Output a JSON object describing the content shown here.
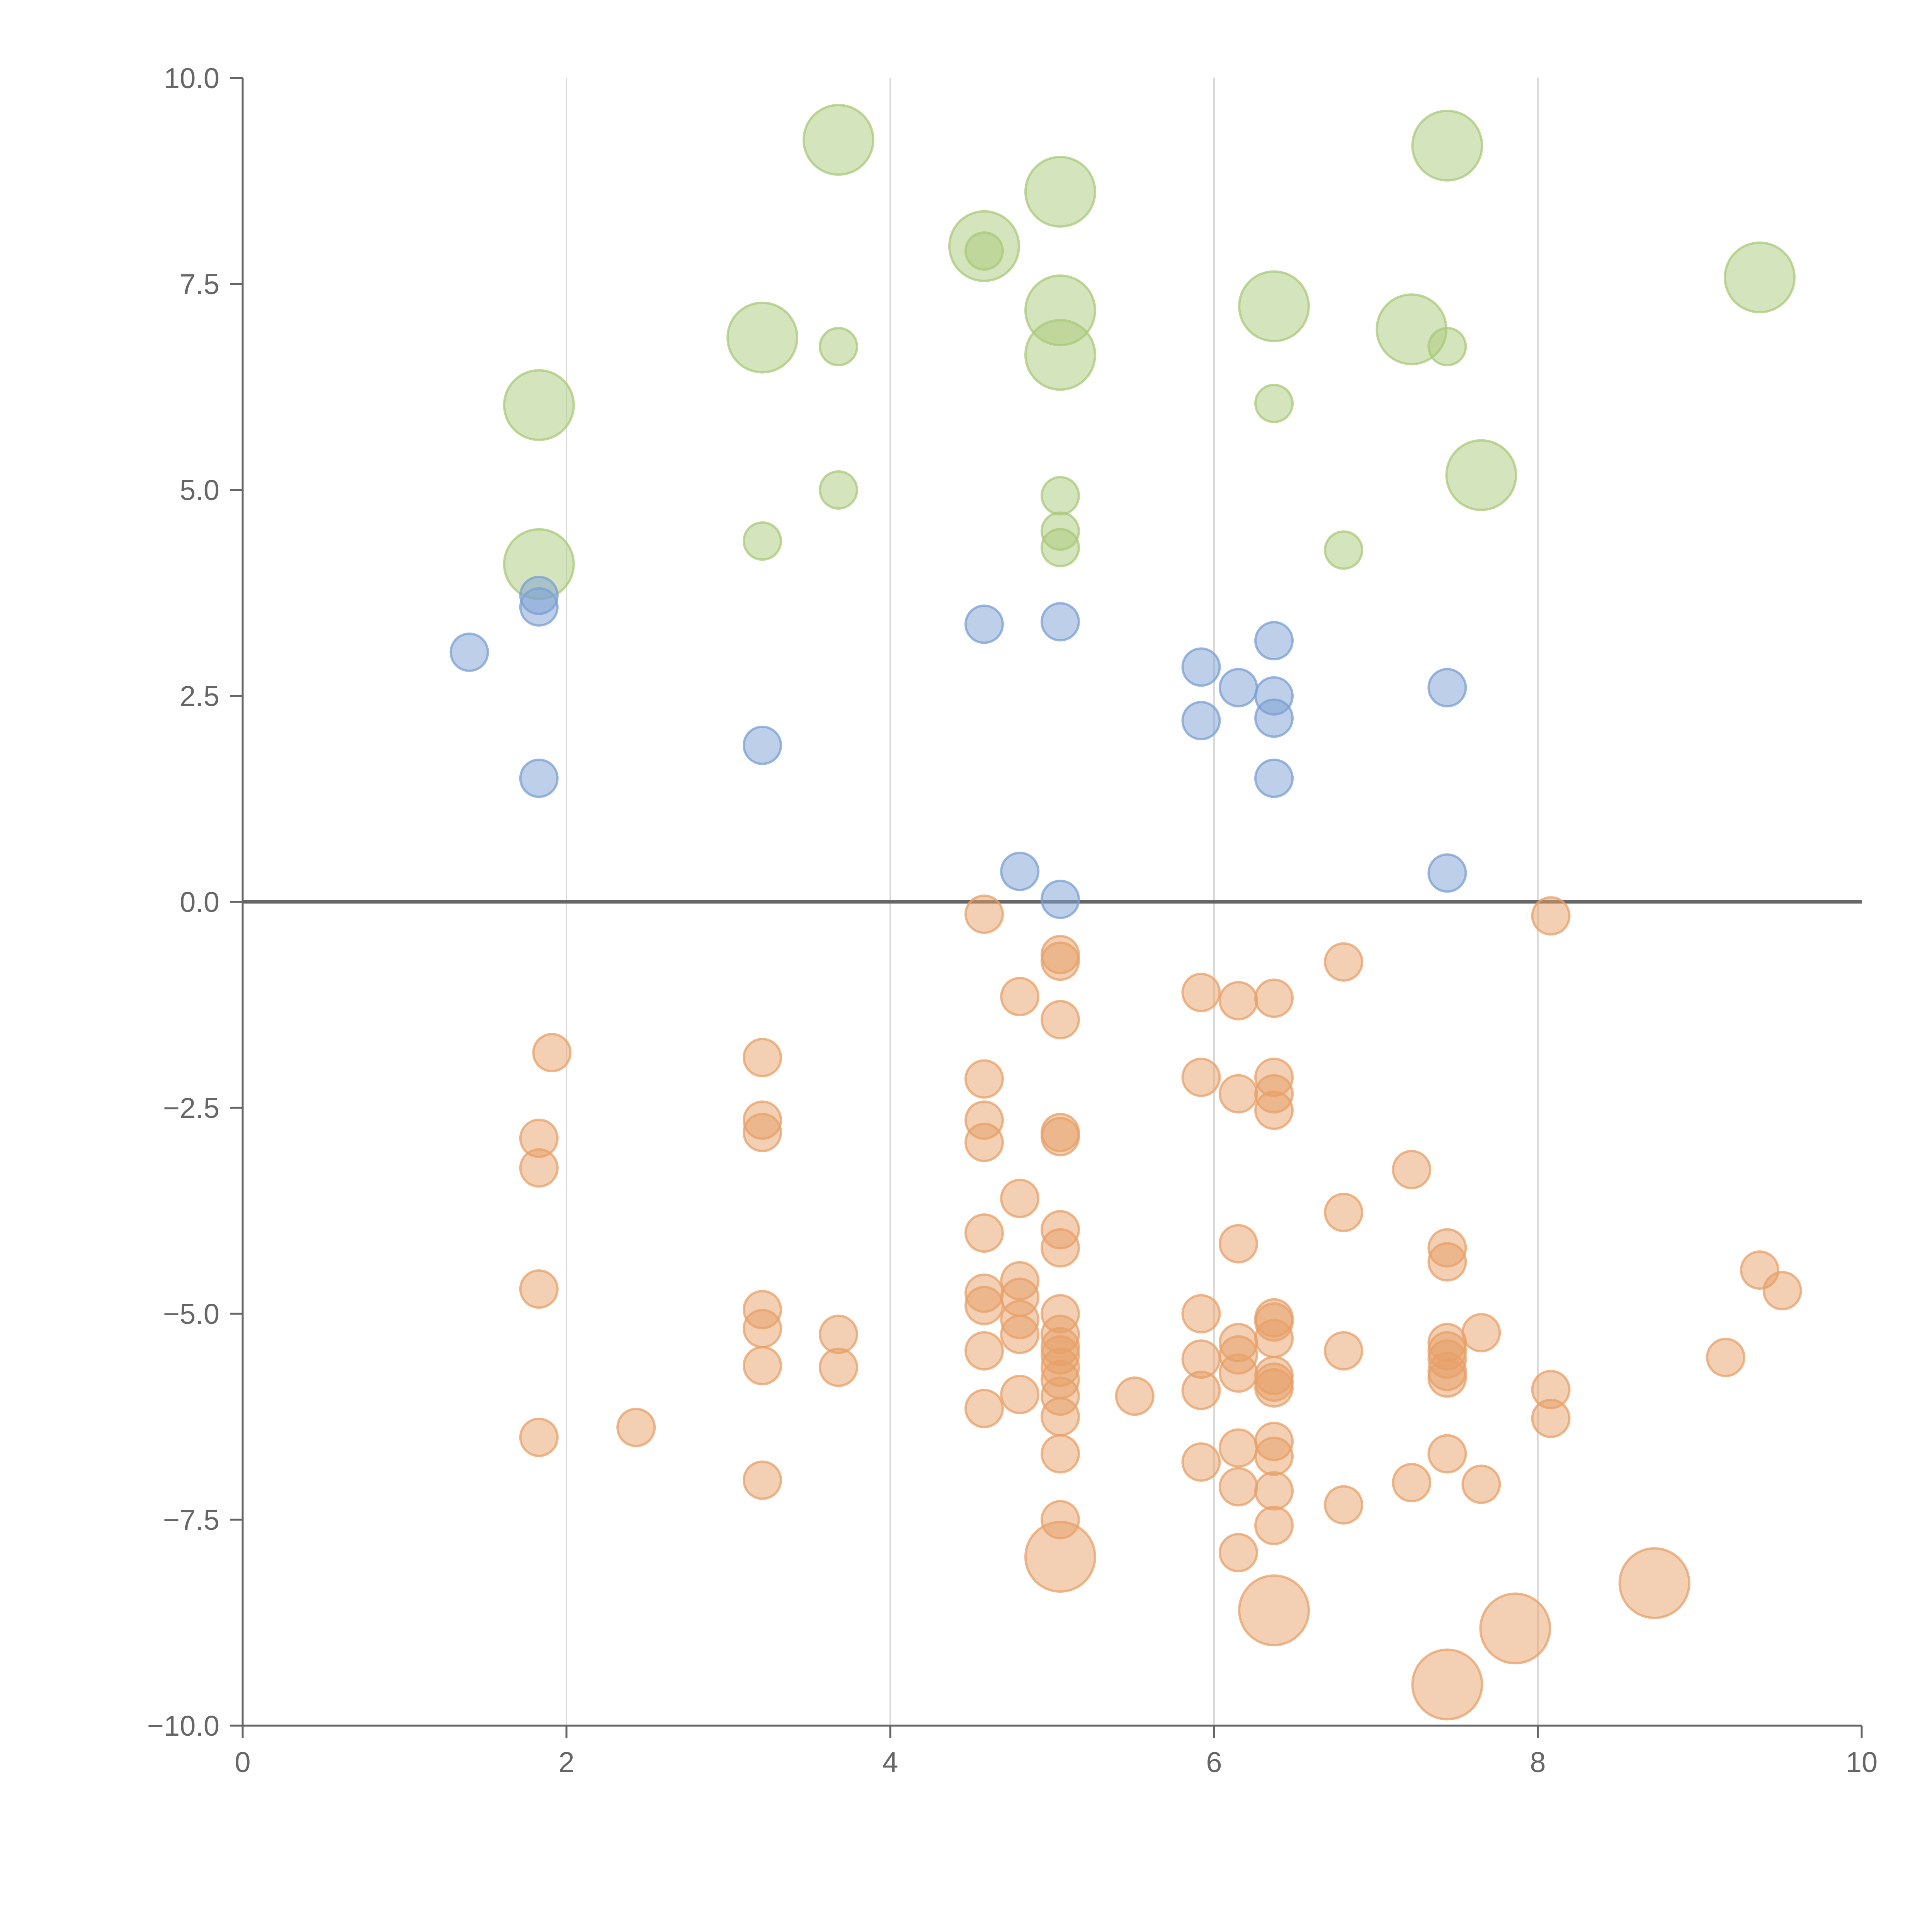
{
  "chart_data": {
    "type": "scatter",
    "title": "",
    "xlabel": "",
    "ylabel": "",
    "xlim": [
      0,
      10
    ],
    "ylim": [
      -10,
      10
    ],
    "grid": "vertical",
    "legend": "none",
    "x_ticks": [
      "0",
      "2",
      "4",
      "6",
      "8",
      "10"
    ],
    "y_ticks": [
      "10.0",
      "7.5",
      "5.0",
      "2.5",
      "0.0",
      "−2.5",
      "−5.0",
      "−7.5",
      "−10.0"
    ],
    "colors": {
      "green": "#a9c97a",
      "blue": "#7b9fd3",
      "orange": "#e8a068",
      "axis": "#666666",
      "zero_line": "#666666",
      "grid": "#d9d9d9"
    },
    "series": [
      {
        "name": "green",
        "points": [
          [
            3.68,
            9.25,
            1
          ],
          [
            5.05,
            8.62,
            1
          ],
          [
            7.44,
            9.18,
            1
          ],
          [
            4.58,
            7.96,
            1
          ],
          [
            4.58,
            7.9,
            0
          ],
          [
            5.05,
            7.18,
            1
          ],
          [
            5.05,
            6.64,
            1
          ],
          [
            3.21,
            6.85,
            1
          ],
          [
            3.68,
            6.74,
            0
          ],
          [
            1.83,
            6.03,
            1
          ],
          [
            6.37,
            7.23,
            1
          ],
          [
            7.22,
            6.95,
            1
          ],
          [
            7.44,
            6.74,
            0
          ],
          [
            9.37,
            7.58,
            1
          ],
          [
            6.37,
            6.05,
            0
          ],
          [
            3.68,
            5.0,
            0
          ],
          [
            5.05,
            4.93,
            0
          ],
          [
            5.05,
            4.5,
            0
          ],
          [
            5.05,
            4.3,
            0
          ],
          [
            3.21,
            4.38,
            0
          ],
          [
            1.83,
            4.1,
            1
          ],
          [
            6.8,
            4.27,
            0
          ],
          [
            7.65,
            5.18,
            1
          ]
        ]
      },
      {
        "name": "blue",
        "points": [
          [
            1.4,
            3.03,
            0
          ],
          [
            1.83,
            3.72,
            0
          ],
          [
            1.83,
            3.58,
            0
          ],
          [
            1.83,
            1.5,
            0
          ],
          [
            3.21,
            1.9,
            0
          ],
          [
            4.58,
            3.37,
            0
          ],
          [
            5.05,
            3.4,
            0
          ],
          [
            5.92,
            2.85,
            0
          ],
          [
            5.92,
            2.2,
            0
          ],
          [
            6.15,
            2.6,
            0
          ],
          [
            6.37,
            3.17,
            0
          ],
          [
            6.37,
            2.5,
            0
          ],
          [
            6.37,
            2.23,
            0
          ],
          [
            6.37,
            1.5,
            0
          ],
          [
            7.44,
            2.6,
            0
          ],
          [
            4.8,
            0.37,
            0
          ],
          [
            5.05,
            0.03,
            0
          ],
          [
            7.44,
            0.35,
            0
          ]
        ]
      },
      {
        "name": "orange",
        "points": [
          [
            4.58,
            -0.15,
            0
          ],
          [
            8.08,
            -0.17,
            0
          ],
          [
            5.05,
            -0.64,
            0
          ],
          [
            5.05,
            -0.72,
            0
          ],
          [
            6.8,
            -0.73,
            0
          ],
          [
            4.8,
            -1.15,
            0
          ],
          [
            5.92,
            -1.1,
            0
          ],
          [
            6.15,
            -1.2,
            0
          ],
          [
            6.37,
            -1.17,
            0
          ],
          [
            5.05,
            -1.43,
            0
          ],
          [
            1.91,
            -1.83,
            0
          ],
          [
            3.21,
            -1.89,
            0
          ],
          [
            4.58,
            -2.15,
            0
          ],
          [
            5.92,
            -2.13,
            0
          ],
          [
            6.15,
            -2.33,
            0
          ],
          [
            6.37,
            -2.13,
            0
          ],
          [
            6.37,
            -2.33,
            0
          ],
          [
            6.37,
            -2.53,
            0
          ],
          [
            3.21,
            -2.65,
            0
          ],
          [
            3.21,
            -2.8,
            0
          ],
          [
            4.58,
            -2.65,
            0
          ],
          [
            4.58,
            -2.92,
            0
          ],
          [
            5.05,
            -2.8,
            0
          ],
          [
            5.05,
            -2.85,
            0
          ],
          [
            1.83,
            -2.87,
            0
          ],
          [
            1.83,
            -3.23,
            0
          ],
          [
            7.22,
            -3.25,
            0
          ],
          [
            4.8,
            -3.6,
            0
          ],
          [
            6.8,
            -3.77,
            0
          ],
          [
            4.58,
            -4.02,
            0
          ],
          [
            5.05,
            -3.98,
            0
          ],
          [
            5.05,
            -4.2,
            0
          ],
          [
            6.15,
            -4.15,
            0
          ],
          [
            7.44,
            -4.2,
            0
          ],
          [
            7.44,
            -4.37,
            0
          ],
          [
            9.37,
            -4.47,
            0
          ],
          [
            9.51,
            -4.72,
            0
          ],
          [
            1.83,
            -4.7,
            0
          ],
          [
            4.8,
            -4.6,
            0
          ],
          [
            4.8,
            -4.8,
            0
          ],
          [
            4.58,
            -4.75,
            0
          ],
          [
            4.58,
            -4.9,
            0
          ],
          [
            3.21,
            -4.95,
            0
          ],
          [
            3.21,
            -5.18,
            0
          ],
          [
            3.68,
            -5.25,
            0
          ],
          [
            4.8,
            -5.07,
            0
          ],
          [
            4.8,
            -5.25,
            0
          ],
          [
            5.05,
            -5.0,
            0
          ],
          [
            5.05,
            -5.25,
            0
          ],
          [
            5.05,
            -5.4,
            0
          ],
          [
            5.05,
            -5.5,
            0
          ],
          [
            5.05,
            -5.65,
            0
          ],
          [
            5.05,
            -5.8,
            0
          ],
          [
            5.92,
            -5.0,
            0
          ],
          [
            6.15,
            -5.35,
            0
          ],
          [
            6.15,
            -5.5,
            0
          ],
          [
            6.37,
            -5.05,
            0
          ],
          [
            6.37,
            -5.1,
            0
          ],
          [
            6.37,
            -5.3,
            0
          ],
          [
            7.44,
            -5.35,
            0
          ],
          [
            7.44,
            -5.45,
            0
          ],
          [
            7.44,
            -5.55,
            0
          ],
          [
            7.65,
            -5.23,
            0
          ],
          [
            4.58,
            -5.45,
            0
          ],
          [
            5.92,
            -5.55,
            0
          ],
          [
            6.15,
            -5.72,
            0
          ],
          [
            6.37,
            -5.75,
            0
          ],
          [
            6.37,
            -5.83,
            0
          ],
          [
            6.37,
            -5.9,
            0
          ],
          [
            6.8,
            -5.45,
            0
          ],
          [
            7.44,
            -5.7,
            0
          ],
          [
            7.44,
            -5.78,
            0
          ],
          [
            9.16,
            -5.53,
            0
          ],
          [
            3.21,
            -5.63,
            0
          ],
          [
            3.68,
            -5.65,
            0
          ],
          [
            5.05,
            -6.0,
            0
          ],
          [
            4.8,
            -5.98,
            0
          ],
          [
            5.51,
            -6.0,
            0
          ],
          [
            5.92,
            -5.93,
            0
          ],
          [
            8.08,
            -5.92,
            0
          ],
          [
            4.58,
            -6.15,
            0
          ],
          [
            5.05,
            -6.25,
            0
          ],
          [
            8.08,
            -6.27,
            0
          ],
          [
            2.43,
            -6.38,
            0
          ],
          [
            1.83,
            -6.5,
            0
          ],
          [
            6.37,
            -6.55,
            0
          ],
          [
            6.37,
            -6.73,
            0
          ],
          [
            6.15,
            -6.63,
            0
          ],
          [
            5.05,
            -6.7,
            0
          ],
          [
            5.92,
            -6.8,
            0
          ],
          [
            7.44,
            -6.7,
            0
          ],
          [
            3.21,
            -7.02,
            0
          ],
          [
            6.15,
            -7.1,
            0
          ],
          [
            7.22,
            -7.05,
            0
          ],
          [
            7.65,
            -7.07,
            0
          ],
          [
            6.37,
            -7.15,
            0
          ],
          [
            6.8,
            -7.32,
            0
          ],
          [
            5.05,
            -7.5,
            0
          ],
          [
            6.37,
            -7.57,
            0
          ],
          [
            6.15,
            -7.9,
            0
          ],
          [
            5.05,
            -7.95,
            1
          ],
          [
            6.37,
            -8.6,
            1
          ],
          [
            7.86,
            -8.82,
            1
          ],
          [
            8.72,
            -8.27,
            1
          ],
          [
            7.44,
            -9.5,
            1
          ]
        ]
      }
    ]
  }
}
